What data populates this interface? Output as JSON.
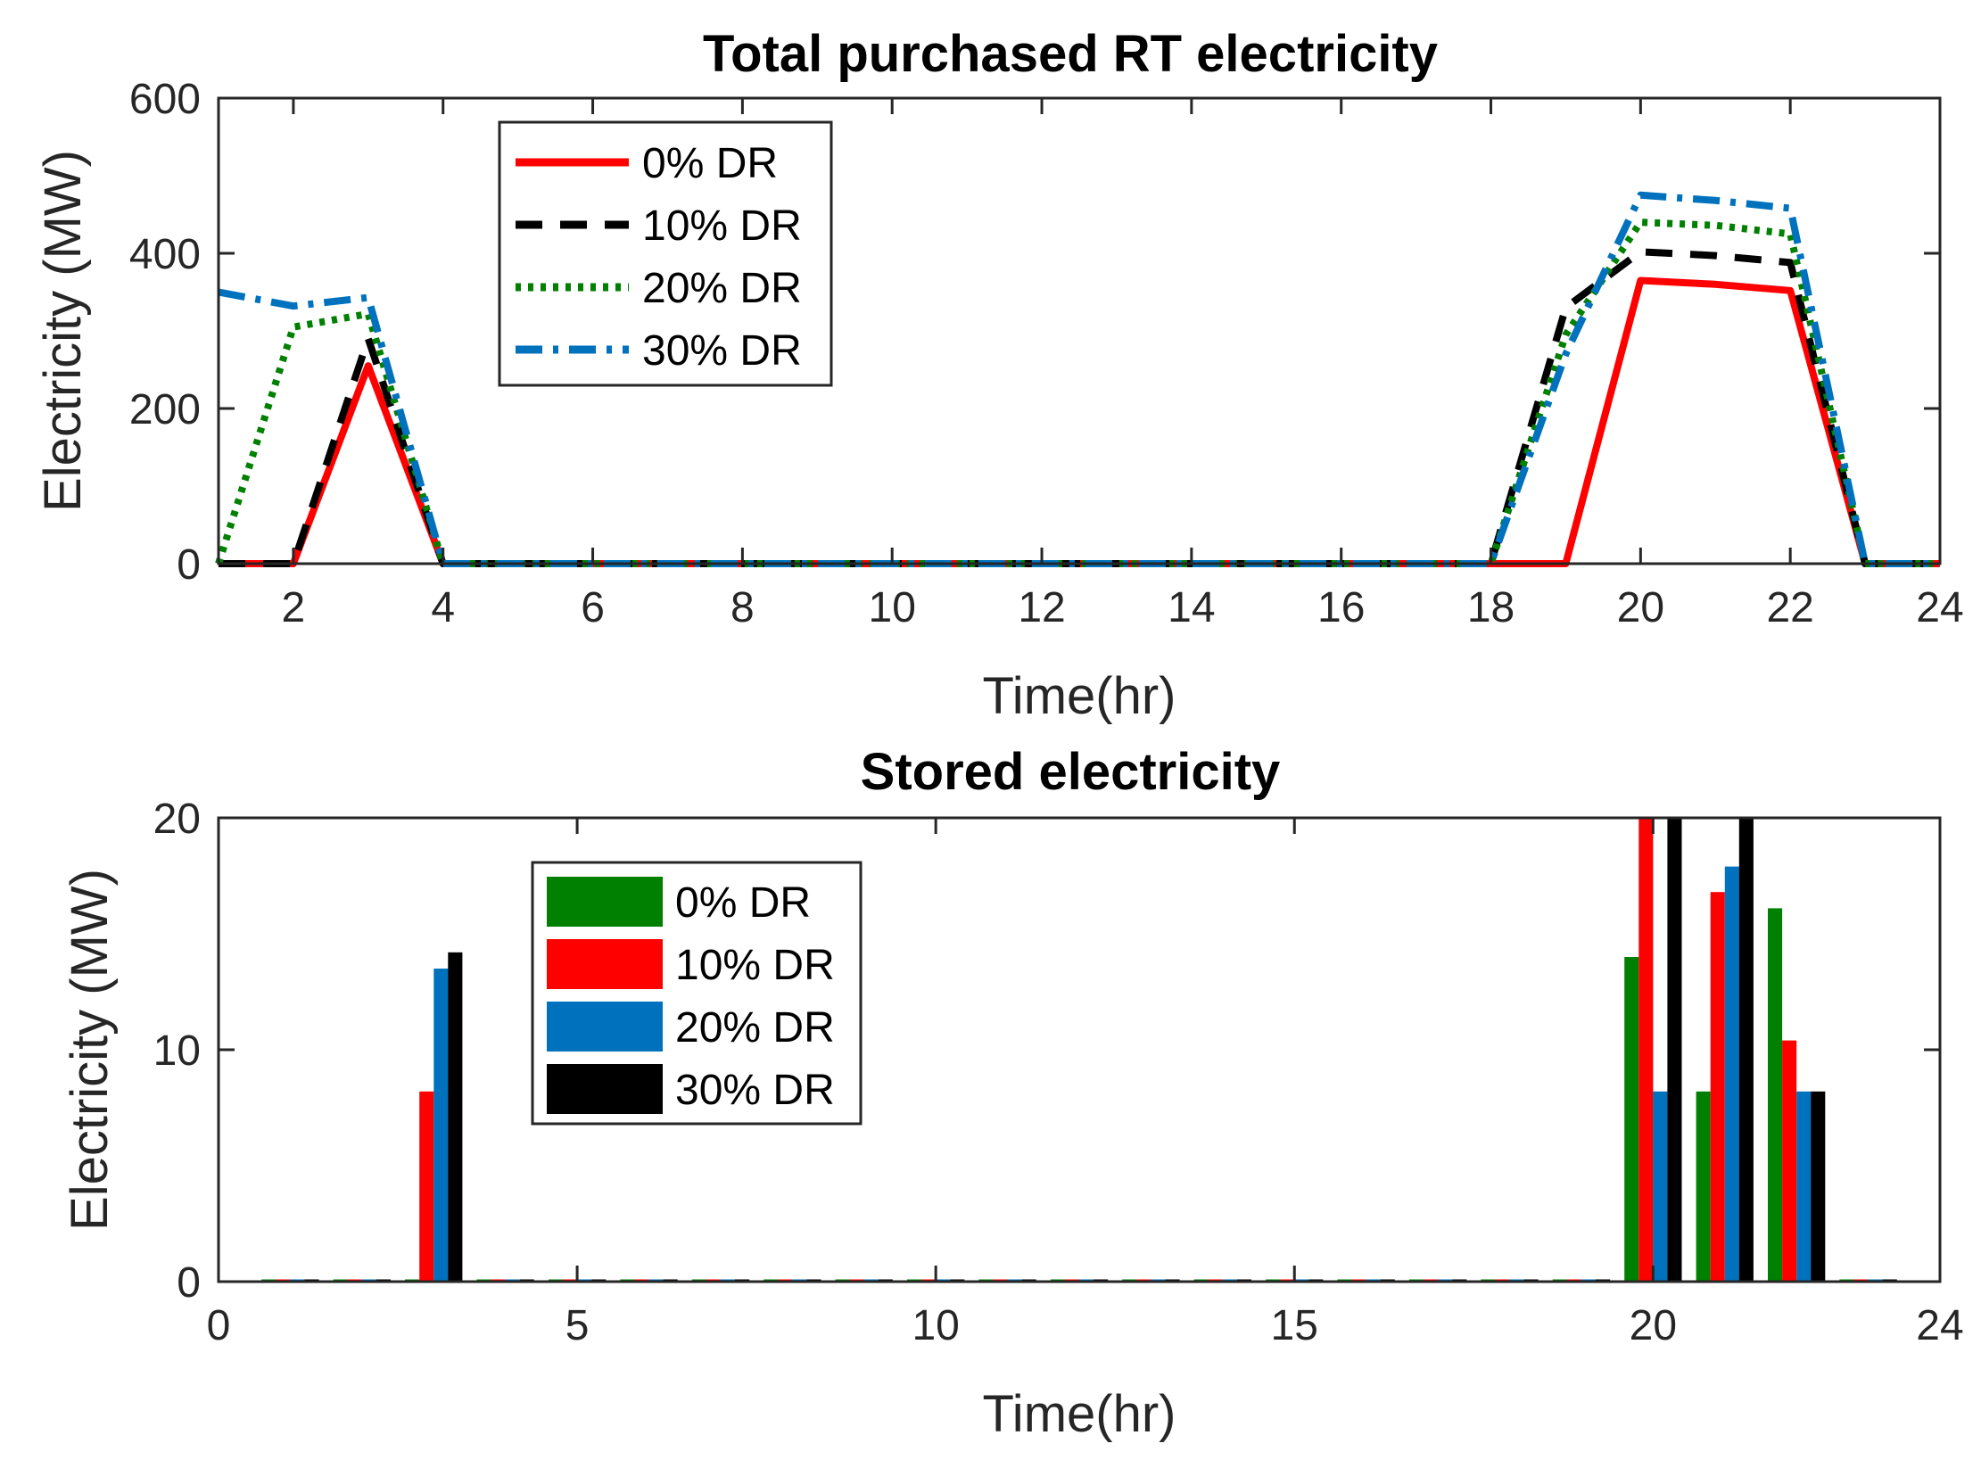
{
  "chart_data": [
    {
      "type": "line",
      "title": "Total purchased RT electricity",
      "xlabel": "Time(hr)",
      "ylabel": "Electricity (MW)",
      "xlim": [
        1,
        24
      ],
      "ylim": [
        0,
        600
      ],
      "xticks": [
        2,
        4,
        6,
        8,
        10,
        12,
        14,
        16,
        18,
        20,
        22,
        24
      ],
      "yticks": [
        0,
        200,
        400,
        600
      ],
      "grid": false,
      "legend_position": "top-left",
      "x": [
        1,
        2,
        3,
        4,
        5,
        6,
        7,
        8,
        9,
        10,
        11,
        12,
        13,
        14,
        15,
        16,
        17,
        18,
        19,
        20,
        21,
        22,
        23,
        24
      ],
      "series": [
        {
          "name": "0% DR",
          "color": "#ff0000",
          "style": "solid",
          "values": [
            0,
            0,
            255,
            0,
            0,
            0,
            0,
            0,
            0,
            0,
            0,
            0,
            0,
            0,
            0,
            0,
            0,
            0,
            0,
            365,
            360,
            352,
            0,
            0
          ]
        },
        {
          "name": "10% DR",
          "color": "#000000",
          "style": "dashed",
          "values": [
            0,
            0,
            290,
            0,
            0,
            0,
            0,
            0,
            0,
            0,
            0,
            0,
            0,
            0,
            0,
            0,
            0,
            0,
            330,
            402,
            397,
            388,
            0,
            0
          ]
        },
        {
          "name": "20% DR",
          "color": "#008000",
          "style": "dotted",
          "values": [
            0,
            305,
            322,
            0,
            0,
            0,
            0,
            0,
            0,
            0,
            0,
            0,
            0,
            0,
            0,
            0,
            0,
            0,
            295,
            440,
            436,
            425,
            0,
            0
          ]
        },
        {
          "name": "30% DR",
          "color": "#0072bd",
          "style": "dashdot",
          "values": [
            350,
            332,
            343,
            0,
            0,
            0,
            0,
            0,
            0,
            0,
            0,
            0,
            0,
            0,
            0,
            0,
            0,
            0,
            270,
            475,
            468,
            458,
            0,
            0
          ]
        }
      ]
    },
    {
      "type": "bar",
      "title": "Stored electricity",
      "xlabel": "Time(hr)",
      "ylabel": "Electricity (MW)",
      "xlim": [
        0,
        24
      ],
      "ylim": [
        0,
        20
      ],
      "xticks": [
        0,
        5,
        10,
        15,
        20,
        24
      ],
      "yticks": [
        0,
        10,
        20
      ],
      "grid": false,
      "legend_position": "top-left",
      "categories": [
        1,
        2,
        3,
        4,
        5,
        6,
        7,
        8,
        9,
        10,
        11,
        12,
        13,
        14,
        15,
        16,
        17,
        18,
        19,
        20,
        21,
        22,
        23
      ],
      "series": [
        {
          "name": "0% DR",
          "color": "#008000",
          "values": [
            0,
            0,
            0,
            0,
            0,
            0,
            0,
            0,
            0,
            0,
            0,
            0,
            0,
            0,
            0,
            0,
            0,
            0,
            0,
            14,
            8.2,
            16.1,
            0
          ]
        },
        {
          "name": "10% DR",
          "color": "#ff0000",
          "values": [
            0,
            0,
            8.2,
            0,
            0,
            0,
            0,
            0,
            0,
            0,
            0,
            0,
            0,
            0,
            0,
            0,
            0,
            0,
            0,
            20,
            16.8,
            10.4,
            0
          ]
        },
        {
          "name": "20% DR",
          "color": "#0072bd",
          "values": [
            0,
            0,
            13.5,
            0,
            0,
            0,
            0,
            0,
            0,
            0,
            0,
            0,
            0,
            0,
            0,
            0,
            0,
            0,
            0,
            8.2,
            17.9,
            8.2,
            0
          ]
        },
        {
          "name": "30% DR",
          "color": "#000000",
          "values": [
            0,
            0,
            14.2,
            0,
            0,
            0,
            0,
            0,
            0,
            0,
            0,
            0,
            0,
            0,
            0,
            0,
            0,
            0,
            0,
            20,
            20,
            8.2,
            0
          ]
        }
      ]
    }
  ]
}
